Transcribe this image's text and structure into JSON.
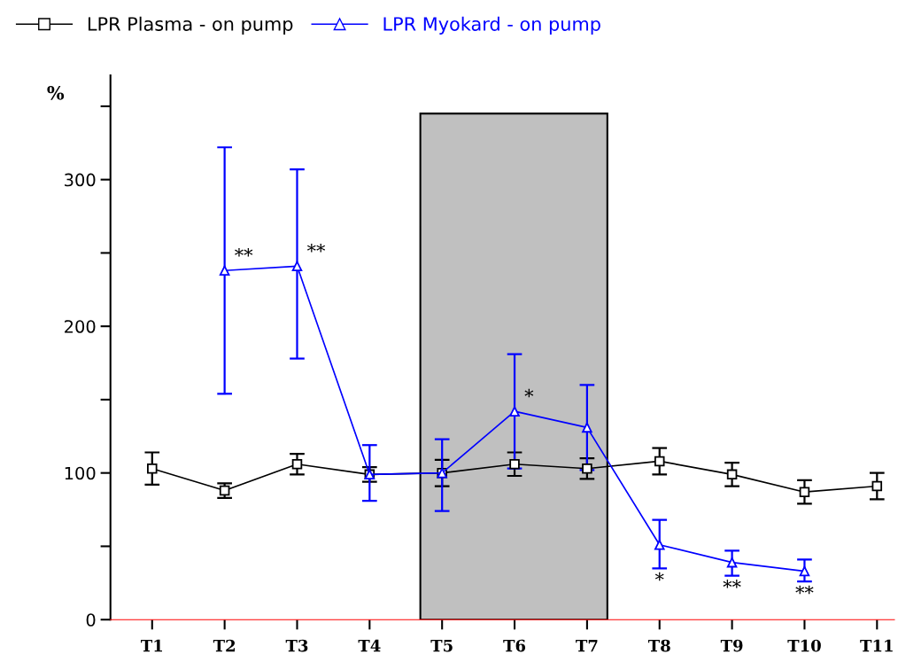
{
  "chart_data": {
    "type": "line",
    "ylabel": "%",
    "categories": [
      "T1",
      "T2",
      "T3",
      "T4",
      "T5",
      "T6",
      "T7",
      "T8",
      "T9",
      "T10",
      "T11"
    ],
    "series": [
      {
        "name": "LPR Plasma - on pump",
        "color": "#000000",
        "marker": "square",
        "values": [
          103,
          88,
          106,
          99,
          100,
          106,
          103,
          108,
          99,
          87,
          91
        ],
        "errors": [
          11,
          5,
          7,
          5,
          9,
          8,
          7,
          9,
          8,
          8,
          9
        ]
      },
      {
        "name": "LPR Myokard - on pump",
        "color": "#0000ff",
        "marker": "triangle",
        "values": [
          null,
          238,
          241,
          99,
          100,
          142,
          131,
          51,
          39,
          33,
          null
        ],
        "errors": [
          null,
          [
            154,
            322
          ],
          [
            178,
            307
          ],
          [
            81,
            119
          ],
          [
            74,
            123
          ],
          [
            103,
            181
          ],
          [
            102,
            160
          ],
          [
            35,
            68
          ],
          [
            30,
            47
          ],
          [
            26,
            41
          ],
          null
        ],
        "value_labels": [
          null,
          "**",
          "**",
          null,
          null,
          "*",
          null,
          "*",
          "**",
          "**",
          null
        ]
      }
    ],
    "ylim": [
      0,
      371
    ],
    "yticks": [
      0,
      {
        "value": 50,
        "label": null
      },
      100,
      {
        "value": 150,
        "label": null
      },
      200,
      {
        "value": 250,
        "label": null
      },
      300,
      {
        "value": 350,
        "label": null
      }
    ],
    "grid": false,
    "legend": "top"
  }
}
